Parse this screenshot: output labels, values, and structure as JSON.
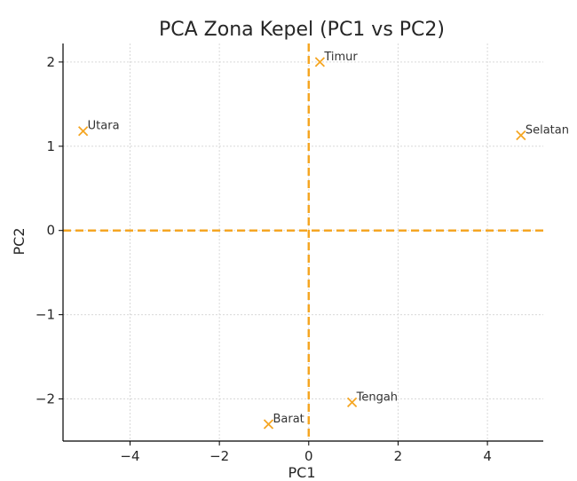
{
  "chart_data": {
    "type": "scatter",
    "title": "PCA Zona Kepel (PC1 vs PC2)",
    "xlabel": "PC1",
    "ylabel": "PC2",
    "xlim": [
      -5.5,
      5.25
    ],
    "ylim": [
      -2.5,
      2.22
    ],
    "xticks": [
      -4,
      -2,
      0,
      2,
      4
    ],
    "yticks": [
      -2,
      -1,
      0,
      1,
      2
    ],
    "xtick_labels": [
      "−4",
      "−2",
      "0",
      "2",
      "4"
    ],
    "ytick_labels": [
      "−2",
      "−1",
      "0",
      "1",
      "2"
    ],
    "grid": true,
    "marker": "x",
    "color": "#f5a623",
    "reference_lines": {
      "x": 0,
      "y": 0,
      "style": "dashed"
    },
    "points": [
      {
        "label": "Timur",
        "x": 0.25,
        "y": 2.0
      },
      {
        "label": "Utara",
        "x": -5.05,
        "y": 1.18
      },
      {
        "label": "Selatan",
        "x": 4.75,
        "y": 1.13
      },
      {
        "label": "Tengah",
        "x": 0.97,
        "y": -2.04
      },
      {
        "label": "Barat",
        "x": -0.9,
        "y": -2.3
      }
    ]
  }
}
